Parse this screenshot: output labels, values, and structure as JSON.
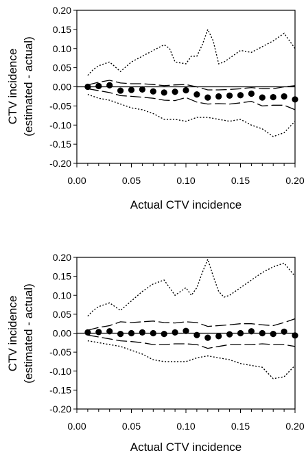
{
  "chart_data": [
    {
      "type": "scatter",
      "title": "",
      "xlabel": "Actual CTV incidence",
      "ylabel": [
        "CTV incidence",
        "(estimated - actual)"
      ],
      "xlim": [
        0.0,
        0.2
      ],
      "ylim": [
        -0.2,
        0.2
      ],
      "xticks": [
        "0.00",
        "0.05",
        "0.10",
        "0.15",
        "0.20"
      ],
      "yticks": [
        "0.20",
        "0.15",
        "0.10",
        "0.05",
        "0.00",
        "-0.05",
        "-0.10",
        "-0.15",
        "-0.20"
      ],
      "reference_line_y": 0,
      "grid": false,
      "series": [
        {
          "style": "markers",
          "x": [
            0.01,
            0.02,
            0.03,
            0.04,
            0.05,
            0.06,
            0.07,
            0.08,
            0.09,
            0.1,
            0.11,
            0.12,
            0.13,
            0.14,
            0.15,
            0.16,
            0.17,
            0.18,
            0.19,
            0.2
          ],
          "y": [
            0.0,
            0.002,
            0.004,
            -0.01,
            -0.008,
            -0.007,
            -0.012,
            -0.015,
            -0.013,
            -0.009,
            -0.02,
            -0.028,
            -0.025,
            -0.023,
            -0.022,
            -0.018,
            -0.028,
            -0.027,
            -0.025,
            -0.033
          ]
        },
        {
          "style": "long-dash",
          "x": [
            0.01,
            0.02,
            0.03,
            0.04,
            0.05,
            0.06,
            0.07,
            0.08,
            0.09,
            0.1,
            0.11,
            0.12,
            0.13,
            0.14,
            0.15,
            0.16,
            0.17,
            0.18,
            0.19,
            0.2
          ],
          "y": [
            0.005,
            0.012,
            0.017,
            0.01,
            0.008,
            0.008,
            0.006,
            0.003,
            0.005,
            0.006,
            0.0,
            -0.008,
            -0.008,
            -0.007,
            -0.005,
            -0.002,
            -0.005,
            -0.005,
            0.0,
            0.003
          ]
        },
        {
          "style": "long-dash",
          "x": [
            0.01,
            0.02,
            0.03,
            0.04,
            0.05,
            0.06,
            0.07,
            0.08,
            0.09,
            0.1,
            0.11,
            0.12,
            0.13,
            0.14,
            0.15,
            0.16,
            0.17,
            0.18,
            0.19,
            0.2
          ],
          "y": [
            -0.005,
            -0.01,
            -0.015,
            -0.023,
            -0.025,
            -0.027,
            -0.03,
            -0.035,
            -0.036,
            -0.028,
            -0.04,
            -0.045,
            -0.044,
            -0.045,
            -0.042,
            -0.038,
            -0.05,
            -0.048,
            -0.048,
            -0.06
          ]
        },
        {
          "style": "dotted",
          "x": [
            0.01,
            0.015,
            0.02,
            0.03,
            0.04,
            0.05,
            0.06,
            0.07,
            0.08,
            0.085,
            0.09,
            0.1,
            0.105,
            0.11,
            0.115,
            0.12,
            0.125,
            0.13,
            0.135,
            0.14,
            0.15,
            0.16,
            0.17,
            0.18,
            0.19,
            0.2
          ],
          "y": [
            0.03,
            0.045,
            0.055,
            0.065,
            0.04,
            0.065,
            0.08,
            0.095,
            0.11,
            0.1,
            0.065,
            0.06,
            0.08,
            0.08,
            0.11,
            0.15,
            0.12,
            0.06,
            0.065,
            0.075,
            0.095,
            0.09,
            0.105,
            0.12,
            0.14,
            0.1
          ]
        },
        {
          "style": "dotted",
          "x": [
            0.01,
            0.02,
            0.03,
            0.04,
            0.05,
            0.06,
            0.07,
            0.08,
            0.09,
            0.1,
            0.11,
            0.12,
            0.13,
            0.14,
            0.15,
            0.16,
            0.17,
            0.18,
            0.19,
            0.2
          ],
          "y": [
            -0.02,
            -0.03,
            -0.035,
            -0.045,
            -0.055,
            -0.06,
            -0.07,
            -0.085,
            -0.085,
            -0.09,
            -0.08,
            -0.08,
            -0.085,
            -0.09,
            -0.085,
            -0.1,
            -0.11,
            -0.13,
            -0.12,
            -0.09
          ]
        }
      ]
    },
    {
      "type": "scatter",
      "title": "",
      "xlabel": "Actual CTV incidence",
      "ylabel": [
        "CTV incidence",
        "(estimated - actual)"
      ],
      "xlim": [
        0.0,
        0.2
      ],
      "ylim": [
        -0.2,
        0.2
      ],
      "xticks": [
        "0.00",
        "0.05",
        "0.10",
        "0.15",
        "0.20"
      ],
      "yticks": [
        "0.20",
        "0.15",
        "0.10",
        "0.05",
        "0.00",
        "-0.05",
        "-0.10",
        "-0.15",
        "-0.20"
      ],
      "reference_line_y": 0,
      "grid": false,
      "series": [
        {
          "style": "markers",
          "x": [
            0.01,
            0.02,
            0.03,
            0.04,
            0.05,
            0.06,
            0.07,
            0.08,
            0.09,
            0.1,
            0.11,
            0.12,
            0.13,
            0.14,
            0.15,
            0.16,
            0.17,
            0.18,
            0.19,
            0.2
          ],
          "y": [
            0.002,
            0.003,
            0.005,
            -0.002,
            0.0,
            0.002,
            0.0,
            -0.002,
            0.002,
            0.006,
            -0.005,
            -0.012,
            -0.008,
            -0.003,
            0.0,
            0.005,
            0.0,
            -0.002,
            0.004,
            -0.006
          ]
        },
        {
          "style": "long-dash",
          "x": [
            0.01,
            0.02,
            0.03,
            0.04,
            0.05,
            0.06,
            0.07,
            0.08,
            0.09,
            0.1,
            0.11,
            0.12,
            0.13,
            0.14,
            0.15,
            0.16,
            0.17,
            0.18,
            0.19,
            0.2
          ],
          "y": [
            0.008,
            0.015,
            0.02,
            0.03,
            0.028,
            0.03,
            0.032,
            0.028,
            0.027,
            0.03,
            0.028,
            0.018,
            0.02,
            0.022,
            0.025,
            0.025,
            0.022,
            0.02,
            0.028,
            0.038
          ]
        },
        {
          "style": "long-dash",
          "x": [
            0.01,
            0.02,
            0.03,
            0.04,
            0.05,
            0.06,
            0.07,
            0.08,
            0.09,
            0.1,
            0.11,
            0.12,
            0.13,
            0.14,
            0.15,
            0.16,
            0.17,
            0.18,
            0.19,
            0.2
          ],
          "y": [
            -0.005,
            -0.01,
            -0.015,
            -0.02,
            -0.022,
            -0.025,
            -0.03,
            -0.03,
            -0.028,
            -0.028,
            -0.03,
            -0.04,
            -0.035,
            -0.03,
            -0.03,
            -0.03,
            -0.028,
            -0.03,
            -0.03,
            -0.035
          ]
        },
        {
          "style": "dotted",
          "x": [
            0.01,
            0.015,
            0.02,
            0.03,
            0.04,
            0.05,
            0.06,
            0.07,
            0.08,
            0.085,
            0.09,
            0.1,
            0.105,
            0.11,
            0.115,
            0.12,
            0.125,
            0.13,
            0.135,
            0.14,
            0.15,
            0.16,
            0.17,
            0.18,
            0.19,
            0.2
          ],
          "y": [
            0.045,
            0.06,
            0.07,
            0.08,
            0.06,
            0.085,
            0.11,
            0.13,
            0.14,
            0.12,
            0.1,
            0.12,
            0.1,
            0.12,
            0.16,
            0.195,
            0.15,
            0.11,
            0.095,
            0.1,
            0.12,
            0.14,
            0.16,
            0.175,
            0.185,
            0.15
          ]
        },
        {
          "style": "dotted",
          "x": [
            0.01,
            0.02,
            0.03,
            0.04,
            0.05,
            0.06,
            0.07,
            0.08,
            0.09,
            0.1,
            0.11,
            0.12,
            0.13,
            0.14,
            0.15,
            0.16,
            0.17,
            0.18,
            0.19,
            0.2
          ],
          "y": [
            -0.02,
            -0.025,
            -0.03,
            -0.035,
            -0.045,
            -0.055,
            -0.07,
            -0.075,
            -0.075,
            -0.075,
            -0.065,
            -0.06,
            -0.065,
            -0.07,
            -0.08,
            -0.085,
            -0.09,
            -0.12,
            -0.115,
            -0.085
          ]
        }
      ]
    }
  ]
}
